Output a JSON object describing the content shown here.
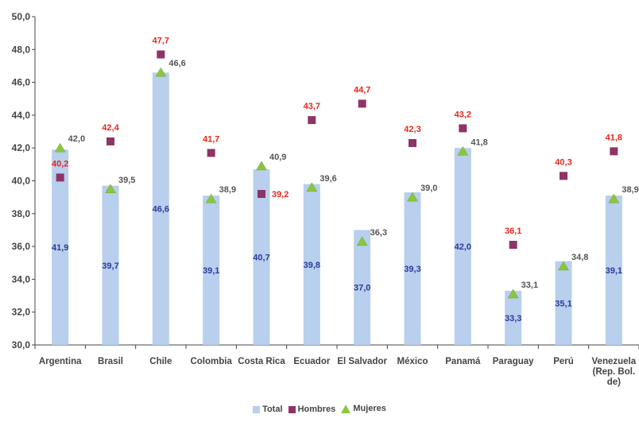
{
  "chart_data": {
    "type": "bar",
    "categories": [
      "Argentina",
      "Brasil",
      "Chile",
      "Colombia",
      "Costa Rica",
      "Ecuador",
      "El Salvador",
      "México",
      "Panamá",
      "Paraguay",
      "Perú",
      [
        "Venezuela",
        "(Rep. Bol.",
        "de)"
      ]
    ],
    "series": [
      {
        "name": "Total",
        "kind": "bar",
        "values": [
          41.9,
          39.7,
          46.6,
          39.1,
          40.7,
          39.8,
          37.0,
          39.3,
          42.0,
          33.3,
          35.1,
          39.1
        ],
        "labels": [
          "41,9",
          "39,7",
          "46,6",
          "39,1",
          "40,7",
          "39,8",
          "37,0",
          "39,3",
          "42,0",
          "33,3",
          "35,1",
          "39,1"
        ]
      },
      {
        "name": "Hombres",
        "kind": "square-marker",
        "values": [
          40.2,
          42.4,
          47.7,
          41.7,
          39.2,
          43.7,
          44.7,
          42.3,
          43.2,
          36.1,
          40.3,
          41.8
        ],
        "labels": [
          "40,2",
          "42,4",
          "47,7",
          "41,7",
          "39,2",
          "43,7",
          "44,7",
          "42,3",
          "43,2",
          "36,1",
          "40,3",
          "41,8"
        ]
      },
      {
        "name": "Mujeres",
        "kind": "triangle-marker",
        "values": [
          42.0,
          39.5,
          46.6,
          38.9,
          40.9,
          39.6,
          36.3,
          39.0,
          41.8,
          33.1,
          34.8,
          38.9
        ],
        "labels": [
          "42,0",
          "39,5",
          "46,6",
          "38,9",
          "40,9",
          "39,6",
          "36,3",
          "39,0",
          "41,8",
          "33,1",
          "34,8",
          "38,9"
        ]
      }
    ],
    "ylim": [
      30,
      50
    ],
    "yticks": [
      "30,0",
      "32,0",
      "34,0",
      "36,0",
      "38,0",
      "40,0",
      "42,0",
      "44,0",
      "46,0",
      "48,0",
      "50,0"
    ],
    "grid": false,
    "legend_position": "bottom",
    "colors": {
      "total": "#b8cfee",
      "hombres": "#8e3466",
      "mujeres": "#8cc63f",
      "total_label": "#2e3a99",
      "hombres_label": "#e8251b",
      "mujeres_label": "#555555",
      "axis": "#444444"
    }
  },
  "legend": {
    "total": "Total",
    "hombres": "Hombres",
    "mujeres": "Mujeres"
  }
}
